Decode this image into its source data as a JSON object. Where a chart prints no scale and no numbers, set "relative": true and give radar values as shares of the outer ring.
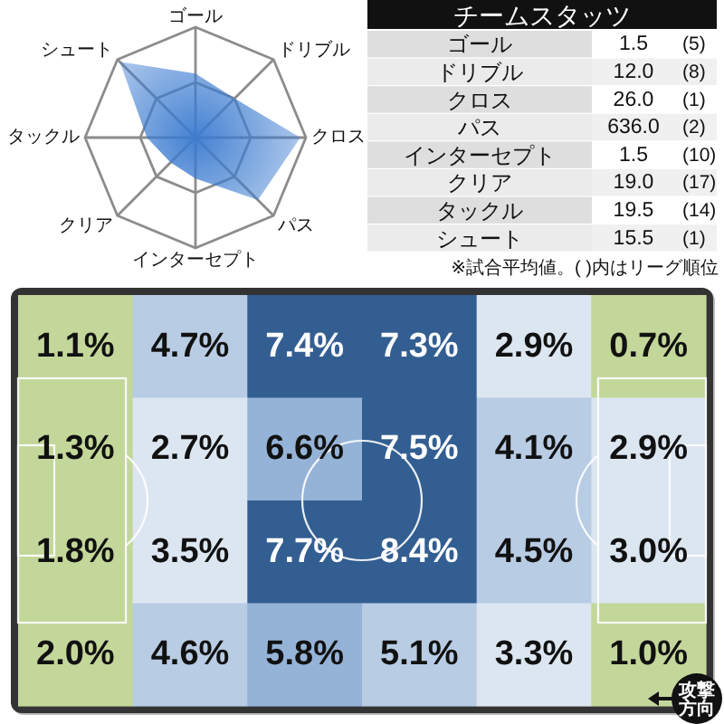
{
  "chart_data": [
    {
      "type": "radar",
      "relative": true,
      "grid": true,
      "categories": [
        "ゴール",
        "ドリブル",
        "クロス",
        "パス",
        "インターセプト",
        "クリア",
        "タックル",
        "シュート"
      ],
      "series": [
        {
          "color": "#3b7bd0",
          "values": [
            0.58,
            0.5,
            0.95,
            0.8,
            0.37,
            0.32,
            0.44,
            0.97
          ]
        }
      ]
    },
    {
      "type": "other",
      "title": "チームスタッツ",
      "categories": [
        "ゴール",
        "ドリブル",
        "クロス",
        "パス",
        "インターセプト",
        "クリア",
        "タックル",
        "シュート"
      ],
      "series": [
        {
          "values": [
            1.5,
            12.0,
            26.0,
            636.0,
            1.5,
            19.0,
            19.5,
            15.5
          ],
          "value_labels": [
            "1.5",
            "12.0",
            "26.0",
            "636.0",
            "1.5",
            "19.0",
            "19.5",
            "15.5"
          ]
        },
        {
          "values": [
            5,
            8,
            1,
            2,
            10,
            17,
            14,
            1
          ],
          "value_labels": [
            "(5)",
            "(8)",
            "(1)",
            "(2)",
            "(10)",
            "(17)",
            "(14)",
            "(1)"
          ]
        }
      ],
      "annotations": [
        "※試合平均値。( )内はリーグ順位"
      ]
    },
    {
      "type": "heatmap",
      "categories": [
        null,
        null,
        null,
        null,
        null,
        null
      ],
      "y_categories": [
        null,
        null,
        null,
        null
      ],
      "cells": [
        [
          1.1,
          4.7,
          7.4,
          7.3,
          2.9,
          0.7
        ],
        [
          1.3,
          2.7,
          6.6,
          7.5,
          4.1,
          2.9
        ],
        [
          1.8,
          3.5,
          7.7,
          8.4,
          4.5,
          3.0
        ],
        [
          2.0,
          4.6,
          5.8,
          5.1,
          3.3,
          1.0
        ]
      ],
      "cell_labels": [
        [
          "1.1%",
          "4.7%",
          "7.4%",
          "7.3%",
          "2.9%",
          "0.7%"
        ],
        [
          "1.3%",
          "2.7%",
          "6.6%",
          "7.5%",
          "4.1%",
          "2.9%"
        ],
        [
          "1.8%",
          "3.5%",
          "7.7%",
          "8.4%",
          "4.5%",
          "3.0%"
        ],
        [
          "2.0%",
          "4.6%",
          "5.8%",
          "5.1%",
          "3.3%",
          "1.0%"
        ]
      ],
      "annotations": [
        "攻撃方向"
      ]
    }
  ]
}
